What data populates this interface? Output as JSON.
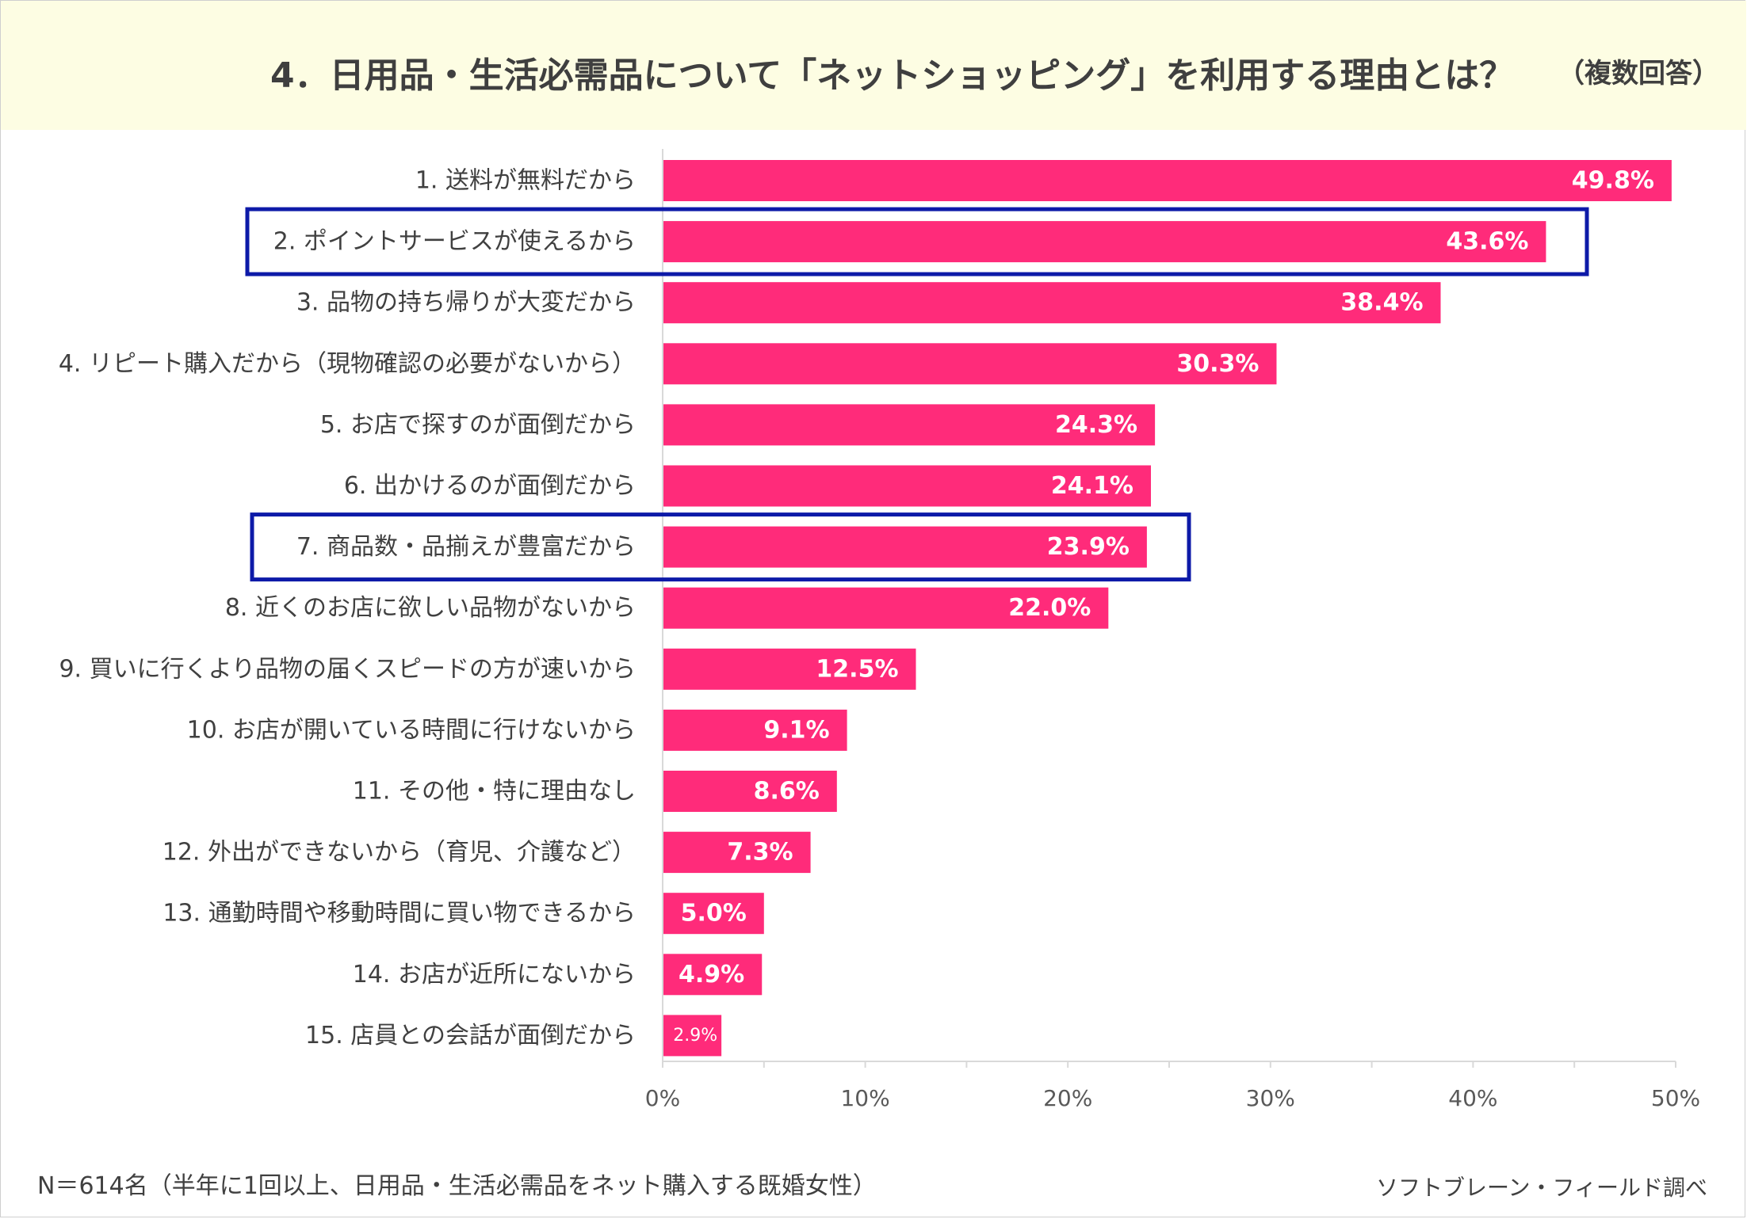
{
  "header": {
    "title": "4．日用品・生活必需品について「ネットショッピング」を利用する理由とは？",
    "subtitle": "（複数回答）"
  },
  "chart_data": {
    "type": "bar",
    "orientation": "horizontal",
    "categories": [
      "1. 送料が無料だから",
      "2. ポイントサービスが使えるから",
      "3. 品物の持ち帰りが大変だから",
      "4. リピート購入だから（現物確認の必要がないから）",
      "5. お店で探すのが面倒だから",
      "6. 出かけるのが面倒だから",
      "7. 商品数・品揃えが豊富だから",
      "8. 近くのお店に欲しい品物がないから",
      "9. 買いに行くより品物の届くスピードの方が速いから",
      "10. お店が開いている時間に行けないから",
      "11. その他・特に理由なし",
      "12. 外出ができないから（育児、介護など）",
      "13. 通勤時間や移動時間に買い物できるから",
      "14. お店が近所にないから",
      "15. 店員との会話が面倒だから"
    ],
    "values": [
      49.8,
      43.6,
      38.4,
      30.3,
      24.3,
      24.1,
      23.9,
      22.0,
      12.5,
      9.1,
      8.6,
      7.3,
      5.0,
      4.9,
      2.9
    ],
    "value_labels": [
      "49.8%",
      "43.6%",
      "38.4%",
      "30.3%",
      "24.3%",
      "24.1%",
      "23.9%",
      "22.0%",
      "12.5%",
      "9.1%",
      "8.6%",
      "7.3%",
      "5.0%",
      "4.9%",
      "2.9%"
    ],
    "xlim": [
      0,
      50
    ],
    "xticks": [
      "0%",
      "10%",
      "20%",
      "30%",
      "40%",
      "50%"
    ],
    "highlighted_categories": [
      1,
      6
    ],
    "colors": {
      "bar": "#ff2b7a",
      "highlight_box": "#0d1aa8"
    }
  },
  "footer": {
    "note": "N＝614名（半年に1回以上、日用品・生活必需品をネット購入する既婚女性）",
    "source": "ソフトブレーン・フィールド調べ"
  }
}
